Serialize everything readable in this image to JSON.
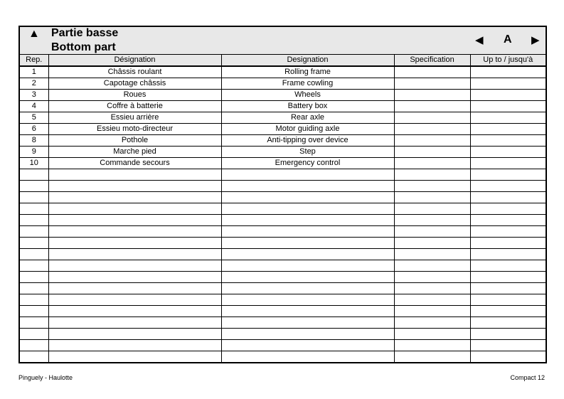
{
  "header": {
    "title_fr": "Partie basse",
    "title_en": "Bottom part",
    "page_letter": "A"
  },
  "columns": [
    "Rep.",
    "Désignation",
    "Designation",
    "Specification",
    "Up to / jusqu'à"
  ],
  "rows": [
    [
      "1",
      "Châssis roulant",
      "Rolling frame",
      "",
      ""
    ],
    [
      "2",
      "Capotage châssis",
      "Frame cowling",
      "",
      ""
    ],
    [
      "3",
      "Roues",
      "Wheels",
      "",
      ""
    ],
    [
      "4",
      "Coffre à batterie",
      "Battery box",
      "",
      ""
    ],
    [
      "5",
      "Essieu arrière",
      "Rear axle",
      "",
      ""
    ],
    [
      "6",
      "Essieu moto-directeur",
      "Motor guiding axle",
      "",
      ""
    ],
    [
      "8",
      "Pothole",
      "Anti-tipping over device",
      "",
      ""
    ],
    [
      "9",
      "Marche pied",
      "Step",
      "",
      ""
    ],
    [
      "10",
      "Commande secours",
      "Emergency control",
      "",
      ""
    ]
  ],
  "footer": {
    "left": "Pinguely - Haulotte",
    "right": "Compact 12"
  }
}
